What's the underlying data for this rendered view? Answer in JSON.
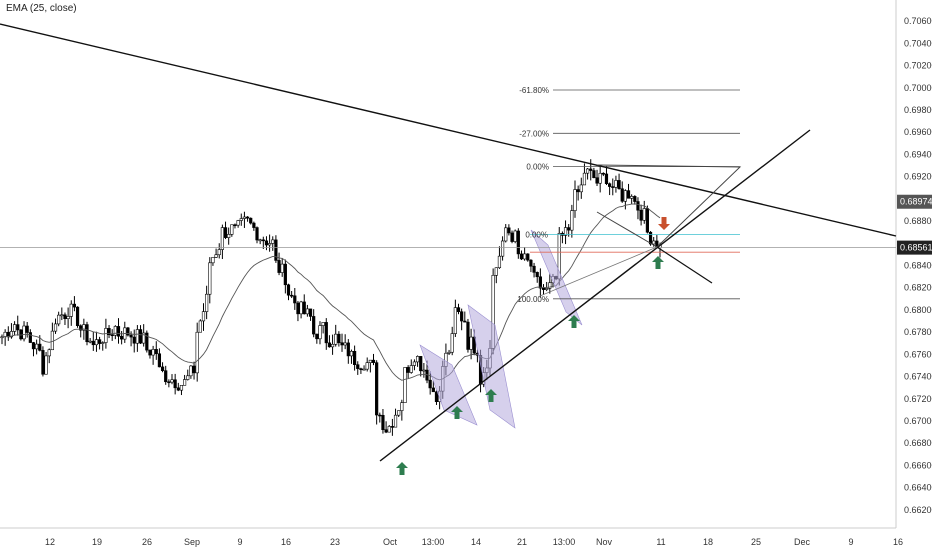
{
  "indicator_label": "EMA (25, close)",
  "chart_data": {
    "type": "candlestick",
    "title": "",
    "xlabel": "",
    "ylabel": "",
    "grid": false,
    "x_ticks": [
      "12",
      "19",
      "26",
      "Sep",
      "9",
      "16",
      "23",
      "Oct",
      "13:00",
      "14",
      "21",
      "13:00",
      "Nov",
      "11",
      "18",
      "25",
      "Dec",
      "9",
      "16"
    ],
    "y_ticks": [
      "0.70600",
      "0.70400",
      "0.70200",
      "0.70000",
      "0.69800",
      "0.69600",
      "0.69400",
      "0.69200",
      "0.68800",
      "0.68400",
      "0.68200",
      "0.68000",
      "0.67800",
      "0.67600",
      "0.67400",
      "0.67200",
      "0.67000",
      "0.66800",
      "0.66600",
      "0.66400",
      "0.66200"
    ],
    "ylim": [
      0.661,
      0.707
    ],
    "price_tags": [
      {
        "value": "0.68974",
        "color": "#555555"
      },
      {
        "value": "0.68561",
        "color": "#222222"
      }
    ],
    "fib_levels": [
      {
        "label": "-61.80%",
        "value": 0.6998
      },
      {
        "label": "-27.00%",
        "value": 0.6959
      },
      {
        "label": "0.00%",
        "value": 0.6929
      },
      {
        "label": "100.00%",
        "value": 0.681
      }
    ],
    "fib_partial_label": "0.00%",
    "series": [
      {
        "kind": "ohlc",
        "anchors": [
          [
            0.6782,
            0.6776
          ],
          [
            0.6788,
            0.6783
          ],
          [
            0.6778,
            0.6775
          ],
          [
            0.676,
            0.6742
          ],
          [
            0.6782,
            0.6792
          ],
          [
            0.6798,
            0.6803
          ],
          [
            0.679,
            0.6784
          ],
          [
            0.6771,
            0.6767
          ],
          [
            0.6778,
            0.6775
          ],
          [
            0.6787,
            0.6779
          ],
          [
            0.678,
            0.6778
          ],
          [
            0.6773,
            0.6765
          ],
          [
            0.6762,
            0.6746
          ],
          [
            0.6739,
            0.6739
          ],
          [
            0.6733,
            0.6732
          ],
          [
            0.6748,
            0.6776
          ],
          [
            0.6814,
            0.6841
          ],
          [
            0.6862,
            0.687
          ],
          [
            0.6873,
            0.687
          ],
          [
            0.688,
            0.6879
          ],
          [
            0.6868,
            0.6866
          ],
          [
            0.686,
            0.6844
          ],
          [
            0.683,
            0.6819
          ],
          [
            0.6802,
            0.6801
          ],
          [
            0.6792,
            0.6778
          ],
          [
            0.6783,
            0.6774
          ],
          [
            0.6775,
            0.6768
          ],
          [
            0.6762,
            0.6758
          ],
          [
            0.6752,
            0.6755
          ],
          [
            0.6745,
            0.6712
          ],
          [
            0.6688,
            0.6695
          ],
          [
            0.672,
            0.6738
          ],
          [
            0.6762,
            0.676
          ],
          [
            0.6742,
            0.6732
          ],
          [
            0.6722,
            0.6745
          ],
          [
            0.6775,
            0.68
          ],
          [
            0.679,
            0.6772
          ],
          [
            0.6765,
            0.6735
          ],
          [
            0.677,
            0.683
          ],
          [
            0.6862,
            0.6874
          ],
          [
            0.6862,
            0.6848
          ],
          [
            0.684,
            0.6829
          ],
          [
            0.6818,
            0.6813
          ],
          [
            0.6828,
            0.6858
          ],
          [
            0.6874,
            0.6893
          ],
          [
            0.6912,
            0.6926
          ],
          [
            0.6918,
            0.6914
          ],
          [
            0.6922,
            0.6914
          ],
          [
            0.6905,
            0.6903
          ],
          [
            0.6908,
            0.6898
          ],
          [
            0.688,
            0.687
          ],
          [
            0.6858,
            0.6856
          ]
        ]
      },
      {
        "kind": "line",
        "name": "EMA (25, close)"
      }
    ],
    "trendlines": [
      {
        "x1": "2019-08-01",
        "y1": 0.7058,
        "x2": "2019-12-20",
        "y2": 0.6862
      },
      {
        "x1": "2019-10-01",
        "y1": 0.666,
        "x2": "2019-11-30",
        "y2": 0.6958
      }
    ],
    "markers": [
      {
        "kind": "arrow-up",
        "color": "#2e7d4f",
        "near": "Oct low"
      },
      {
        "kind": "arrow-up",
        "color": "#2e7d4f",
        "near": "Oct 11"
      },
      {
        "kind": "arrow-up",
        "color": "#2e7d4f",
        "near": "Oct 17"
      },
      {
        "kind": "arrow-up",
        "color": "#2e7d4f",
        "near": "Oct 28"
      },
      {
        "kind": "arrow-up",
        "color": "#2e7d4f",
        "near": "Nov 11"
      },
      {
        "kind": "arrow-down",
        "color": "#c8502d",
        "near": "Nov 12"
      }
    ],
    "colors": {
      "up": "#ffffff",
      "down": "#000000",
      "wick": "#000000",
      "ema": "#555555",
      "channel": "#b4aadc"
    }
  }
}
